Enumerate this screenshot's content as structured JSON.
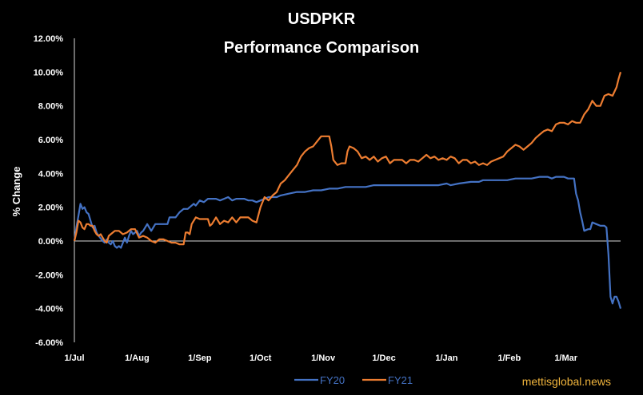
{
  "chart_data": {
    "type": "line",
    "title": "USDPKR",
    "subtitle": "Performance Comparison",
    "ylabel": "% Change",
    "xlabel": "",
    "ylim": [
      -6,
      12
    ],
    "y_ticks": [
      "-6.00%",
      "-4.00%",
      "-2.00%",
      "0.00%",
      "2.00%",
      "4.00%",
      "6.00%",
      "8.00%",
      "10.00%",
      "12.00%"
    ],
    "x_ticks": [
      "1/Jul",
      "1/Aug",
      "1/Sep",
      "1/Oct",
      "1/Nov",
      "1/Dec",
      "1/Jan",
      "1/Feb",
      "1/Mar"
    ],
    "x_tick_days": [
      0,
      31,
      62,
      92,
      123,
      153,
      184,
      215,
      243
    ],
    "x_range_days": [
      0,
      270
    ],
    "grid": false,
    "zero_line": true,
    "legend_position": "bottom",
    "source_text": "mettisglobal.news",
    "series": [
      {
        "name": "FY20",
        "color": "#4472c4",
        "points": [
          [
            0,
            0.0
          ],
          [
            1,
            0.8
          ],
          [
            2,
            1.5
          ],
          [
            3,
            2.2
          ],
          [
            4,
            1.9
          ],
          [
            5,
            2.0
          ],
          [
            6,
            1.7
          ],
          [
            7,
            1.6
          ],
          [
            8,
            1.2
          ],
          [
            9,
            0.8
          ],
          [
            10,
            0.9
          ],
          [
            11,
            0.5
          ],
          [
            12,
            0.3
          ],
          [
            14,
            0.0
          ],
          [
            15,
            -0.1
          ],
          [
            16,
            0.1
          ],
          [
            17,
            -0.1
          ],
          [
            18,
            -0.2
          ],
          [
            19,
            0.0
          ],
          [
            20,
            -0.3
          ],
          [
            21,
            -0.4
          ],
          [
            22,
            -0.3
          ],
          [
            23,
            -0.4
          ],
          [
            24,
            -0.1
          ],
          [
            25,
            0.2
          ],
          [
            26,
            -0.1
          ],
          [
            27,
            0.3
          ],
          [
            28,
            0.6
          ],
          [
            29,
            0.4
          ],
          [
            30,
            0.5
          ],
          [
            31,
            0.6
          ],
          [
            32,
            0.3
          ],
          [
            33,
            0.5
          ],
          [
            34,
            0.6
          ],
          [
            36,
            1.0
          ],
          [
            38,
            0.6
          ],
          [
            40,
            1.0
          ],
          [
            44,
            1.0
          ],
          [
            46,
            1.0
          ],
          [
            47,
            1.4
          ],
          [
            50,
            1.4
          ],
          [
            52,
            1.7
          ],
          [
            54,
            1.9
          ],
          [
            56,
            1.9
          ],
          [
            57,
            2.0
          ],
          [
            59,
            2.2
          ],
          [
            60,
            2.1
          ],
          [
            62,
            2.4
          ],
          [
            64,
            2.3
          ],
          [
            66,
            2.5
          ],
          [
            70,
            2.5
          ],
          [
            72,
            2.4
          ],
          [
            74,
            2.5
          ],
          [
            76,
            2.6
          ],
          [
            78,
            2.4
          ],
          [
            80,
            2.5
          ],
          [
            84,
            2.5
          ],
          [
            86,
            2.4
          ],
          [
            88,
            2.4
          ],
          [
            90,
            2.3
          ],
          [
            92,
            2.4
          ],
          [
            94,
            2.5
          ],
          [
            96,
            2.6
          ],
          [
            100,
            2.6
          ],
          [
            102,
            2.7
          ],
          [
            106,
            2.8
          ],
          [
            110,
            2.9
          ],
          [
            114,
            2.9
          ],
          [
            118,
            3.0
          ],
          [
            122,
            3.0
          ],
          [
            126,
            3.1
          ],
          [
            130,
            3.1
          ],
          [
            134,
            3.2
          ],
          [
            140,
            3.2
          ],
          [
            144,
            3.2
          ],
          [
            148,
            3.3
          ],
          [
            152,
            3.3
          ],
          [
            158,
            3.3
          ],
          [
            162,
            3.3
          ],
          [
            166,
            3.3
          ],
          [
            170,
            3.3
          ],
          [
            176,
            3.3
          ],
          [
            180,
            3.3
          ],
          [
            184,
            3.4
          ],
          [
            186,
            3.3
          ],
          [
            190,
            3.4
          ],
          [
            196,
            3.5
          ],
          [
            200,
            3.5
          ],
          [
            202,
            3.6
          ],
          [
            206,
            3.6
          ],
          [
            210,
            3.6
          ],
          [
            214,
            3.6
          ],
          [
            218,
            3.7
          ],
          [
            220,
            3.7
          ],
          [
            222,
            3.7
          ],
          [
            226,
            3.7
          ],
          [
            230,
            3.8
          ],
          [
            232,
            3.8
          ],
          [
            234,
            3.8
          ],
          [
            236,
            3.7
          ],
          [
            238,
            3.8
          ],
          [
            240,
            3.8
          ],
          [
            242,
            3.8
          ],
          [
            244,
            3.7
          ],
          [
            246,
            3.7
          ],
          [
            247,
            3.7
          ],
          [
            248,
            2.8
          ],
          [
            249,
            2.4
          ],
          [
            250,
            1.7
          ],
          [
            251,
            1.2
          ],
          [
            252,
            0.6
          ],
          [
            254,
            0.7
          ],
          [
            255,
            0.7
          ],
          [
            256,
            1.1
          ],
          [
            258,
            1.0
          ],
          [
            260,
            0.9
          ],
          [
            262,
            0.9
          ],
          [
            263,
            0.8
          ],
          [
            264,
            -0.8
          ],
          [
            265,
            -3.3
          ],
          [
            266,
            -3.7
          ],
          [
            267,
            -3.3
          ],
          [
            268,
            -3.3
          ],
          [
            269,
            -3.6
          ],
          [
            270,
            -4.0
          ]
        ]
      },
      {
        "name": "FY21",
        "color": "#ed7d31",
        "points": [
          [
            0,
            0.0
          ],
          [
            1,
            0.5
          ],
          [
            2,
            1.2
          ],
          [
            3,
            1.1
          ],
          [
            4,
            0.8
          ],
          [
            5,
            0.7
          ],
          [
            6,
            1.0
          ],
          [
            7,
            1.0
          ],
          [
            8,
            0.9
          ],
          [
            9,
            0.9
          ],
          [
            10,
            0.6
          ],
          [
            11,
            0.4
          ],
          [
            12,
            0.3
          ],
          [
            13,
            0.4
          ],
          [
            14,
            0.2
          ],
          [
            15,
            0.0
          ],
          [
            16,
            -0.1
          ],
          [
            17,
            0.3
          ],
          [
            18,
            0.4
          ],
          [
            19,
            0.5
          ],
          [
            20,
            0.6
          ],
          [
            22,
            0.6
          ],
          [
            24,
            0.4
          ],
          [
            26,
            0.5
          ],
          [
            28,
            0.7
          ],
          [
            30,
            0.7
          ],
          [
            32,
            0.2
          ],
          [
            34,
            0.3
          ],
          [
            36,
            0.2
          ],
          [
            38,
            0.0
          ],
          [
            40,
            -0.1
          ],
          [
            42,
            0.1
          ],
          [
            44,
            0.1
          ],
          [
            46,
            0.0
          ],
          [
            48,
            -0.1
          ],
          [
            50,
            -0.1
          ],
          [
            52,
            -0.2
          ],
          [
            54,
            -0.2
          ],
          [
            55,
            0.5
          ],
          [
            56,
            0.5
          ],
          [
            57,
            0.4
          ],
          [
            58,
            1.0
          ],
          [
            60,
            1.4
          ],
          [
            62,
            1.3
          ],
          [
            64,
            1.3
          ],
          [
            66,
            1.3
          ],
          [
            67,
            0.9
          ],
          [
            68,
            1.0
          ],
          [
            70,
            1.4
          ],
          [
            72,
            1.0
          ],
          [
            74,
            1.2
          ],
          [
            76,
            1.1
          ],
          [
            78,
            1.4
          ],
          [
            80,
            1.1
          ],
          [
            82,
            1.4
          ],
          [
            84,
            1.4
          ],
          [
            86,
            1.4
          ],
          [
            88,
            1.2
          ],
          [
            90,
            1.1
          ],
          [
            92,
            2.0
          ],
          [
            94,
            2.6
          ],
          [
            96,
            2.4
          ],
          [
            98,
            2.7
          ],
          [
            100,
            2.9
          ],
          [
            102,
            3.4
          ],
          [
            104,
            3.6
          ],
          [
            106,
            3.9
          ],
          [
            108,
            4.2
          ],
          [
            110,
            4.5
          ],
          [
            112,
            5.0
          ],
          [
            114,
            5.3
          ],
          [
            116,
            5.5
          ],
          [
            118,
            5.6
          ],
          [
            120,
            5.9
          ],
          [
            122,
            6.2
          ],
          [
            124,
            6.2
          ],
          [
            126,
            6.2
          ],
          [
            127,
            5.6
          ],
          [
            128,
            4.8
          ],
          [
            130,
            4.5
          ],
          [
            132,
            4.6
          ],
          [
            134,
            4.6
          ],
          [
            135,
            5.3
          ],
          [
            136,
            5.6
          ],
          [
            138,
            5.5
          ],
          [
            140,
            5.3
          ],
          [
            142,
            4.9
          ],
          [
            144,
            5.0
          ],
          [
            146,
            4.8
          ],
          [
            148,
            5.0
          ],
          [
            150,
            4.7
          ],
          [
            152,
            4.9
          ],
          [
            154,
            5.0
          ],
          [
            156,
            4.6
          ],
          [
            158,
            4.8
          ],
          [
            160,
            4.8
          ],
          [
            162,
            4.8
          ],
          [
            164,
            4.6
          ],
          [
            166,
            4.8
          ],
          [
            168,
            4.8
          ],
          [
            170,
            4.7
          ],
          [
            172,
            4.9
          ],
          [
            174,
            5.1
          ],
          [
            176,
            4.9
          ],
          [
            178,
            5.0
          ],
          [
            180,
            4.8
          ],
          [
            182,
            4.9
          ],
          [
            184,
            4.8
          ],
          [
            186,
            5.0
          ],
          [
            188,
            4.9
          ],
          [
            190,
            4.6
          ],
          [
            192,
            4.8
          ],
          [
            194,
            4.8
          ],
          [
            196,
            4.6
          ],
          [
            198,
            4.7
          ],
          [
            200,
            4.5
          ],
          [
            202,
            4.6
          ],
          [
            204,
            4.5
          ],
          [
            206,
            4.7
          ],
          [
            208,
            4.8
          ],
          [
            210,
            4.9
          ],
          [
            212,
            5.0
          ],
          [
            214,
            5.3
          ],
          [
            216,
            5.5
          ],
          [
            218,
            5.7
          ],
          [
            220,
            5.6
          ],
          [
            222,
            5.4
          ],
          [
            224,
            5.6
          ],
          [
            226,
            5.8
          ],
          [
            228,
            6.1
          ],
          [
            230,
            6.3
          ],
          [
            232,
            6.5
          ],
          [
            234,
            6.6
          ],
          [
            236,
            6.5
          ],
          [
            238,
            6.9
          ],
          [
            240,
            7.0
          ],
          [
            242,
            7.0
          ],
          [
            244,
            6.9
          ],
          [
            246,
            7.1
          ],
          [
            248,
            7.0
          ],
          [
            250,
            7.0
          ],
          [
            252,
            7.5
          ],
          [
            254,
            7.8
          ],
          [
            256,
            8.3
          ],
          [
            258,
            8.0
          ],
          [
            260,
            8.0
          ],
          [
            262,
            8.6
          ],
          [
            264,
            8.7
          ],
          [
            266,
            8.6
          ],
          [
            268,
            9.1
          ],
          [
            269,
            9.6
          ],
          [
            270,
            10.0
          ]
        ]
      }
    ]
  }
}
